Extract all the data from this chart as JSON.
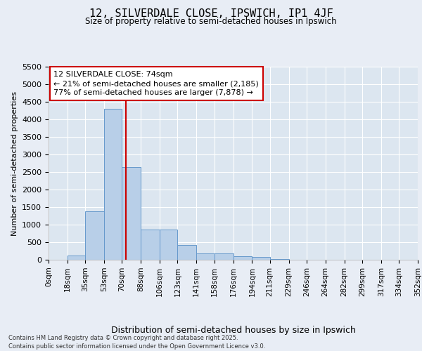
{
  "title": "12, SILVERDALE CLOSE, IPSWICH, IP1 4JF",
  "subtitle": "Size of property relative to semi-detached houses in Ipswich",
  "xlabel": "Distribution of semi-detached houses by size in Ipswich",
  "ylabel": "Number of semi-detached properties",
  "bin_labels": [
    "0sqm",
    "18sqm",
    "35sqm",
    "53sqm",
    "70sqm",
    "88sqm",
    "106sqm",
    "123sqm",
    "141sqm",
    "158sqm",
    "176sqm",
    "194sqm",
    "211sqm",
    "229sqm",
    "246sqm",
    "264sqm",
    "282sqm",
    "299sqm",
    "317sqm",
    "334sqm",
    "352sqm"
  ],
  "bin_edges": [
    0,
    18,
    35,
    53,
    70,
    88,
    106,
    123,
    141,
    158,
    176,
    194,
    211,
    229,
    246,
    264,
    282,
    299,
    317,
    334,
    352
  ],
  "bar_heights": [
    5,
    130,
    1380,
    4300,
    2650,
    870,
    870,
    420,
    180,
    175,
    100,
    80,
    15,
    5,
    0,
    0,
    0,
    0,
    0,
    0
  ],
  "bar_color": "#b8cfe8",
  "bar_edge_color": "#6699cc",
  "property_size": 74,
  "property_line_color": "#cc0000",
  "annotation_text": "12 SILVERDALE CLOSE: 74sqm\n← 21% of semi-detached houses are smaller (2,185)\n77% of semi-detached houses are larger (7,878) →",
  "annotation_box_color": "#ffffff",
  "annotation_border_color": "#cc0000",
  "ylim": [
    0,
    5500
  ],
  "yticks": [
    0,
    500,
    1000,
    1500,
    2000,
    2500,
    3000,
    3500,
    4000,
    4500,
    5000,
    5500
  ],
  "background_color": "#e8edf5",
  "plot_bg_color": "#dce6f0",
  "grid_color": "#ffffff",
  "footer_line1": "Contains HM Land Registry data © Crown copyright and database right 2025.",
  "footer_line2": "Contains public sector information licensed under the Open Government Licence v3.0."
}
